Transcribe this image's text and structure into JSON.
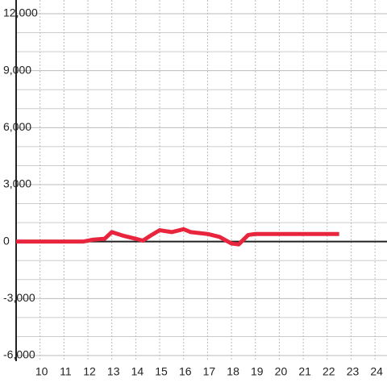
{
  "chart_data": {
    "type": "line",
    "xlim": [
      9,
      24.5
    ],
    "xticks": [
      10,
      11,
      12,
      13,
      14,
      15,
      16,
      17,
      18,
      19,
      20,
      21,
      22,
      23,
      24
    ],
    "ylim": [
      -6000,
      12000
    ],
    "yticks": [
      {
        "value": -6000,
        "label": "-6,000"
      },
      {
        "value": -3000,
        "label": "-3,000"
      },
      0,
      {
        "value": 3000,
        "label": "3,000"
      },
      {
        "value": 6000,
        "label": "6,000"
      },
      {
        "value": 9000,
        "label": "9,000"
      },
      {
        "value": 12000,
        "label": "12,000"
      }
    ],
    "yminorticks": [
      -5000,
      -4000,
      -2000,
      -1000,
      1000,
      2000,
      4000,
      5000,
      7000,
      8000,
      10000,
      11000
    ],
    "grid": true,
    "series": [
      {
        "color": "#e8253c",
        "x": [
          9,
          11.8,
          12.2,
          12.7,
          13,
          13.5,
          14,
          14.3,
          14.6,
          15,
          15.5,
          16,
          16.3,
          17,
          17.5,
          18,
          18.3,
          18.7,
          19,
          22.5
        ],
        "values": [
          0,
          0,
          100,
          150,
          500,
          300,
          150,
          50,
          300,
          600,
          500,
          650,
          500,
          400,
          250,
          -100,
          -150,
          350,
          400,
          400
        ]
      }
    ]
  }
}
